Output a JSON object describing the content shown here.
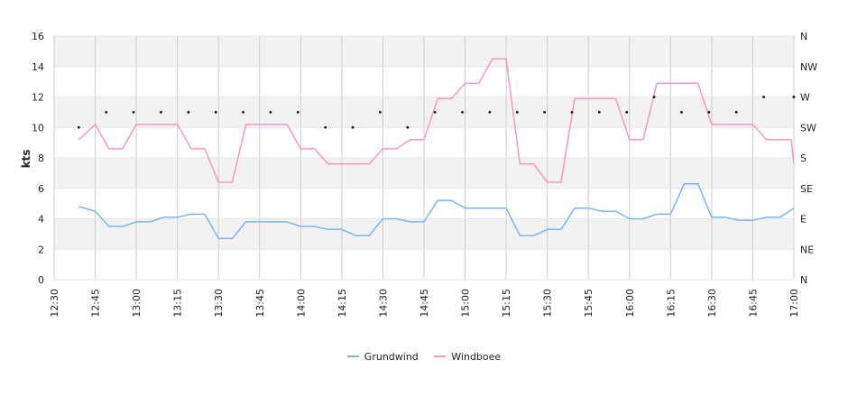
{
  "chart_data": {
    "type": "line",
    "title": "",
    "ylabel": "kts",
    "ylim": [
      0,
      16
    ],
    "yticks": [
      "0",
      "2",
      "4",
      "6",
      "8",
      "10",
      "12",
      "14",
      "16"
    ],
    "y2ticks": [
      "N",
      "NE",
      "E",
      "SE",
      "S",
      "SW",
      "W",
      "NW",
      "N"
    ],
    "xticks": [
      "12:30",
      "12:45",
      "13:00",
      "13:15",
      "13:30",
      "13:45",
      "14:00",
      "14:15",
      "14:30",
      "14:45",
      "15:00",
      "15:15",
      "15:30",
      "15:45",
      "16:00",
      "16:15",
      "16:30",
      "16:45",
      "17:00"
    ],
    "xrange_minutes": [
      0,
      270
    ],
    "grid": true,
    "legend_position": "bottom",
    "series": [
      {
        "name": "Grundwind",
        "color": "#7cb5ec",
        "x": [
          9,
          15,
          20,
          25,
          30,
          35,
          40,
          45,
          50,
          55,
          60,
          65,
          70,
          75,
          80,
          85,
          90,
          95,
          100,
          105,
          110,
          115,
          120,
          125,
          130,
          135,
          140,
          145,
          150,
          155,
          160,
          165,
          170,
          175,
          180,
          185,
          190,
          195,
          200,
          205,
          210,
          215,
          220,
          225,
          230,
          235,
          240,
          245,
          250,
          255,
          260,
          265,
          270
        ],
        "y": [
          4.8,
          4.5,
          3.5,
          3.5,
          3.8,
          3.8,
          4.1,
          4.1,
          4.3,
          4.3,
          2.7,
          2.7,
          3.8,
          3.8,
          3.8,
          3.8,
          3.5,
          3.5,
          3.3,
          3.3,
          2.9,
          2.9,
          4.0,
          4.0,
          3.8,
          3.8,
          5.2,
          5.2,
          4.7,
          4.7,
          4.7,
          4.7,
          2.9,
          2.9,
          3.3,
          3.3,
          4.7,
          4.7,
          4.5,
          4.5,
          4.0,
          4.0,
          4.3,
          4.3,
          6.3,
          6.3,
          4.1,
          4.1,
          3.9,
          3.9,
          4.1,
          4.1,
          4.7
        ]
      },
      {
        "name": "Windboee",
        "color": "#f49ac1",
        "x": [
          9,
          15,
          20,
          25,
          30,
          35,
          40,
          45,
          50,
          55,
          60,
          65,
          70,
          75,
          80,
          85,
          90,
          95,
          100,
          105,
          110,
          115,
          120,
          125,
          130,
          135,
          140,
          145,
          150,
          155,
          160,
          165,
          170,
          175,
          180,
          185,
          190,
          195,
          200,
          205,
          210,
          215,
          220,
          225,
          230,
          235,
          240,
          245,
          250,
          255,
          260,
          265,
          269,
          270
        ],
        "y": [
          9.2,
          10.2,
          8.6,
          8.6,
          10.2,
          10.2,
          10.2,
          10.2,
          8.6,
          8.6,
          6.4,
          6.4,
          10.2,
          10.2,
          10.2,
          10.2,
          8.6,
          8.6,
          7.6,
          7.6,
          7.6,
          7.6,
          8.6,
          8.6,
          9.2,
          9.2,
          11.9,
          11.9,
          12.9,
          12.9,
          14.5,
          14.5,
          7.6,
          7.6,
          6.4,
          6.4,
          11.9,
          11.9,
          11.9,
          11.9,
          9.2,
          9.2,
          12.9,
          12.9,
          12.9,
          12.9,
          10.2,
          10.2,
          10.2,
          10.2,
          9.2,
          9.2,
          9.2,
          7.6
        ]
      },
      {
        "name": "direction",
        "type": "scatter",
        "color": "#000000",
        "x": [
          9,
          19,
          29,
          39,
          49,
          59,
          69,
          79,
          89,
          99,
          109,
          119,
          129,
          139,
          149,
          159,
          169,
          179,
          189,
          199,
          209,
          219,
          229,
          239,
          249,
          259,
          270
        ],
        "y": [
          10,
          11,
          11,
          11,
          11,
          11,
          11,
          11,
          11,
          10,
          10,
          11,
          10,
          11,
          11,
          11,
          11,
          11,
          11,
          11,
          11,
          12,
          11,
          11,
          11,
          12,
          12
        ]
      }
    ]
  }
}
